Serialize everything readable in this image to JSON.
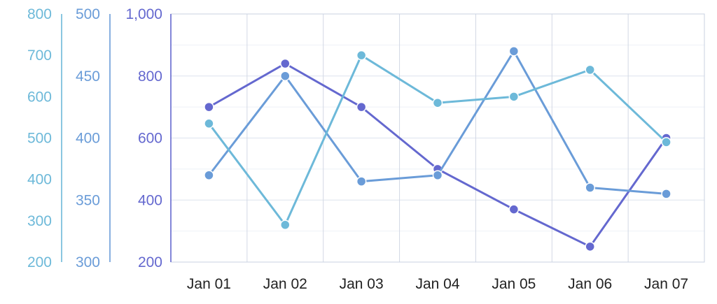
{
  "chart_data": {
    "type": "line",
    "categories": [
      "Jan 01",
      "Jan 02",
      "Jan 03",
      "Jan 04",
      "Jan 05",
      "Jan 06",
      "Jan 07"
    ],
    "series": [
      {
        "color": "#6468cf",
        "axis": "y1",
        "values": [
          700,
          840,
          700,
          500,
          370,
          250,
          600
        ]
      },
      {
        "color": "#6a9cd8",
        "axis": "y2",
        "values": [
          370,
          450,
          365,
          370,
          470,
          360,
          355
        ]
      },
      {
        "color": "#6db9d9",
        "axis": "y3",
        "values": [
          535,
          290,
          700,
          585,
          600,
          665,
          490
        ]
      }
    ],
    "y_axes": [
      {
        "id": "y1",
        "color": "#6468cf",
        "min": 200,
        "max": 1000,
        "ticks": [
          "200",
          "400",
          "600",
          "800",
          "1,000"
        ]
      },
      {
        "id": "y2",
        "color": "#6a9cd8",
        "min": 300,
        "max": 500,
        "ticks": [
          "300",
          "350",
          "400",
          "450",
          "500"
        ]
      },
      {
        "id": "y3",
        "color": "#6db9d9",
        "min": 200,
        "max": 800,
        "ticks": [
          "200",
          "300",
          "400",
          "500",
          "600",
          "700",
          "800"
        ]
      }
    ],
    "grid": true
  }
}
